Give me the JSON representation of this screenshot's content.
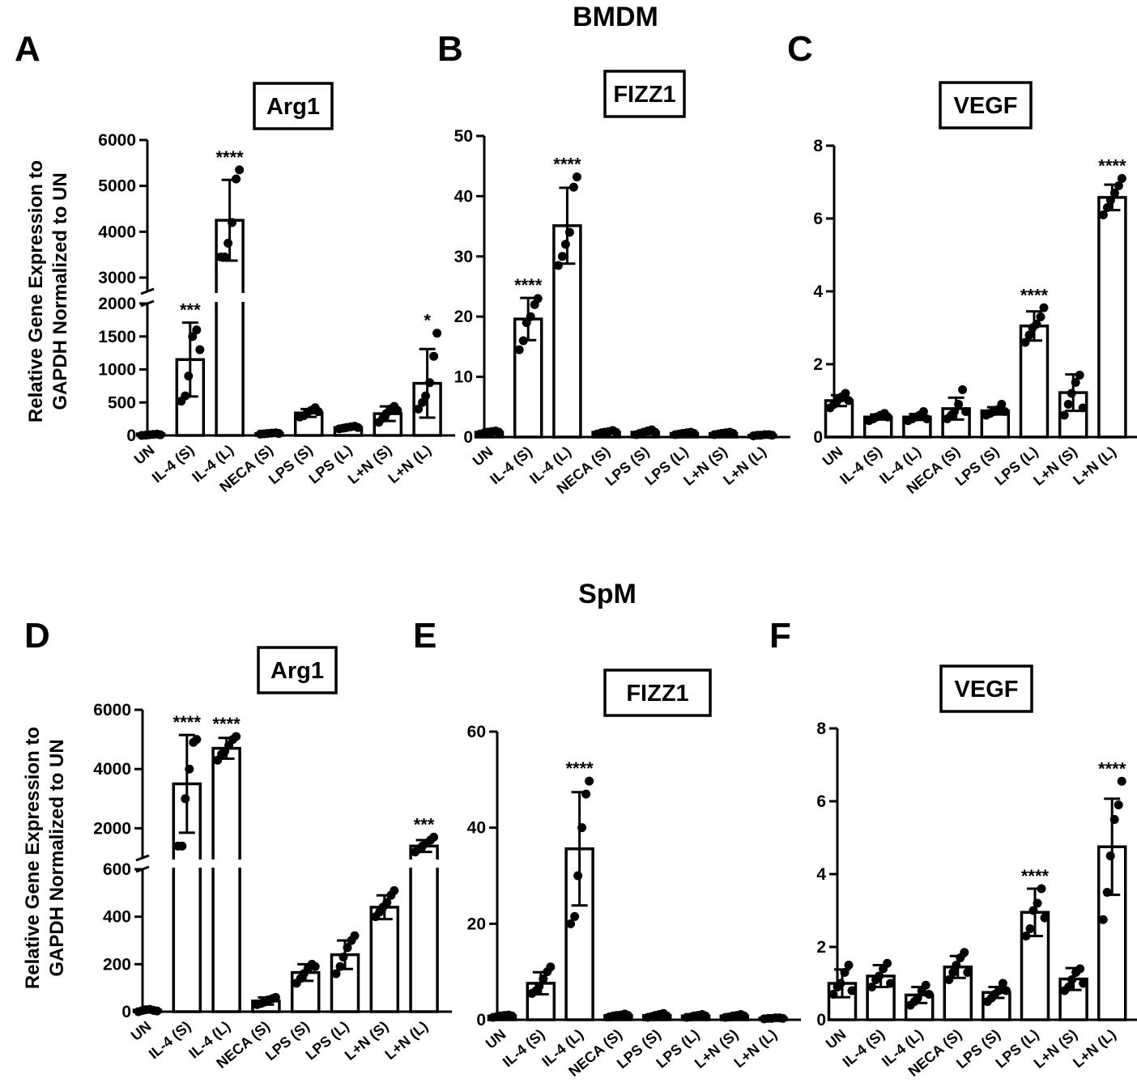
{
  "section_titles": [
    "BMDM",
    "SpM"
  ],
  "y_axis_label": [
    "Relative Gene Expression to",
    "GAPDH Normalized to UN"
  ],
  "chart_data": [
    {
      "panel": "A",
      "title": "Arg1",
      "type": "bar",
      "group": "BMDM",
      "categories": [
        "UN",
        "IL-4 (S)",
        "IL-4 (L)",
        "NECA (S)",
        "LPS (S)",
        "LPS (L)",
        "L+N (S)",
        "L+N (L)"
      ],
      "values": [
        10,
        1150,
        4250,
        30,
        340,
        120,
        330,
        790
      ],
      "sd": [
        5,
        560,
        880,
        10,
        60,
        20,
        110,
        520
      ],
      "points": [
        [
          0,
          5,
          10,
          15,
          20,
          10
        ],
        [
          520,
          600,
          900,
          1500,
          1600,
          1300
        ],
        [
          3450,
          3450,
          3750,
          4200,
          5150,
          5350
        ],
        [
          20,
          25,
          30,
          35,
          40,
          30
        ],
        [
          280,
          300,
          340,
          380,
          420,
          360
        ],
        [
          100,
          110,
          120,
          130,
          140,
          120
        ],
        [
          200,
          260,
          330,
          400,
          440,
          380
        ],
        [
          400,
          500,
          600,
          800,
          1200,
          1550
        ]
      ],
      "significance": [
        "",
        "***",
        "****",
        "",
        "",
        "",
        "",
        "*"
      ],
      "ylim": [
        0,
        6000
      ],
      "y_break": [
        2000,
        2700
      ],
      "yticks": [
        0,
        500,
        1000,
        1500,
        2000,
        3000,
        4000,
        5000,
        6000
      ]
    },
    {
      "panel": "B",
      "title": "FIZZ1",
      "type": "bar",
      "group": "BMDM",
      "categories": [
        "UN",
        "IL-4 (S)",
        "IL-4 (L)",
        "NECA (S)",
        "LPS (S)",
        "LPS (L)",
        "L+N (S)",
        "L+N (L)"
      ],
      "values": [
        0.8,
        19.6,
        35.1,
        0.8,
        0.8,
        0.6,
        0.6,
        0.3
      ],
      "sd": [
        0.2,
        3.5,
        6.3,
        0.2,
        0.3,
        0.1,
        0.1,
        0.1
      ],
      "points": [
        [
          0.5,
          0.7,
          0.8,
          0.9,
          1.0,
          0.8
        ],
        [
          14.5,
          16,
          19,
          20,
          22,
          23
        ],
        [
          28.5,
          30,
          32,
          34,
          41.5,
          43.2
        ],
        [
          0.5,
          0.7,
          0.8,
          0.9,
          1.1,
          0.8
        ],
        [
          0.4,
          0.6,
          0.8,
          1.0,
          1.2,
          0.8
        ],
        [
          0.4,
          0.5,
          0.6,
          0.7,
          0.8,
          0.6
        ],
        [
          0.4,
          0.5,
          0.6,
          0.7,
          0.8,
          0.6
        ],
        [
          0.2,
          0.3,
          0.3,
          0.4,
          0.4,
          0.3
        ]
      ],
      "significance": [
        "",
        "****",
        "****",
        "",
        "",
        "",
        "",
        ""
      ],
      "ylim": [
        0,
        50
      ],
      "yticks": [
        0,
        10,
        20,
        30,
        40,
        50
      ]
    },
    {
      "panel": "C",
      "title": "VEGF",
      "type": "bar",
      "group": "BMDM",
      "categories": [
        "UN",
        "IL-4 (S)",
        "IL-4 (L)",
        "NECA (S)",
        "LPS (S)",
        "LPS (L)",
        "L+N (S)",
        "L+N (L)"
      ],
      "values": [
        1.0,
        0.55,
        0.55,
        0.78,
        0.72,
        3.05,
        1.22,
        6.58
      ],
      "sd": [
        0.15,
        0.07,
        0.08,
        0.3,
        0.1,
        0.4,
        0.5,
        0.35
      ],
      "points": [
        [
          0.8,
          0.9,
          1.0,
          1.1,
          1.2,
          1.0
        ],
        [
          0.45,
          0.5,
          0.55,
          0.6,
          0.65,
          0.55
        ],
        [
          0.45,
          0.5,
          0.55,
          0.6,
          0.7,
          0.5
        ],
        [
          0.5,
          0.6,
          0.7,
          0.9,
          1.3,
          0.7
        ],
        [
          0.6,
          0.65,
          0.7,
          0.75,
          0.9,
          0.7
        ],
        [
          2.6,
          2.8,
          3.0,
          3.1,
          3.3,
          3.55
        ],
        [
          0.6,
          0.9,
          1.2,
          1.5,
          1.7,
          0.8
        ],
        [
          6.1,
          6.3,
          6.5,
          6.7,
          6.9,
          7.1
        ]
      ],
      "significance": [
        "",
        "",
        "",
        "",
        "",
        "****",
        "",
        "****"
      ],
      "ylim": [
        0,
        8
      ],
      "yticks": [
        0,
        2,
        4,
        6,
        8
      ]
    },
    {
      "panel": "D",
      "title": "Arg1",
      "type": "bar",
      "group": "SpM",
      "categories": [
        "UN",
        "IL-4 (S)",
        "IL-4 (L)",
        "NECA (S)",
        "LPS (S)",
        "LPS (L)",
        "L+N (S)",
        "L+N (L)"
      ],
      "values": [
        5,
        3500,
        4700,
        45,
        165,
        240,
        440,
        1400
      ],
      "sd": [
        3,
        1650,
        350,
        15,
        35,
        60,
        50,
        200
      ],
      "points": [
        [
          0,
          5,
          8,
          10,
          5,
          3
        ],
        [
          1400,
          1400,
          3000,
          4000,
          4900,
          5000
        ],
        [
          4300,
          4500,
          4600,
          4800,
          5000,
          5100
        ],
        [
          30,
          35,
          40,
          50,
          55,
          60
        ],
        [
          120,
          140,
          160,
          180,
          200,
          190
        ],
        [
          160,
          190,
          230,
          270,
          300,
          320
        ],
        [
          400,
          420,
          440,
          460,
          490,
          510
        ],
        [
          1200,
          1300,
          1400,
          1500,
          1600,
          1700
        ]
      ],
      "significance": [
        "",
        "****",
        "****",
        "",
        "",
        "",
        "",
        "***"
      ],
      "ylim": [
        0,
        6000
      ],
      "y_break": [
        600,
        1000
      ],
      "yticks": [
        0,
        200,
        400,
        600,
        2000,
        4000,
        6000
      ]
    },
    {
      "panel": "E",
      "title": "FIZZ1",
      "type": "bar",
      "group": "SpM",
      "categories": [
        "UN",
        "IL-4 (S)",
        "IL-4 (L)",
        "NECA (S)",
        "LPS (S)",
        "LPS (L)",
        "L+N (S)",
        "L+N (L)"
      ],
      "values": [
        0.8,
        7.6,
        35.6,
        0.9,
        0.9,
        0.8,
        0.8,
        0.3
      ],
      "sd": [
        0.2,
        2.3,
        11.8,
        0.2,
        0.3,
        0.2,
        0.2,
        0.1
      ],
      "points": [
        [
          0.5,
          0.7,
          0.8,
          0.9,
          1.0,
          0.8
        ],
        [
          5.5,
          6,
          7,
          8.5,
          10,
          11
        ],
        [
          20,
          21.5,
          30,
          40,
          47,
          49.7
        ],
        [
          0.6,
          0.8,
          0.9,
          1.0,
          1.2,
          0.9
        ],
        [
          0.5,
          0.7,
          0.9,
          1.1,
          1.3,
          0.8
        ],
        [
          0.5,
          0.6,
          0.8,
          0.9,
          1.1,
          0.8
        ],
        [
          0.5,
          0.6,
          0.8,
          0.9,
          1.1,
          0.8
        ],
        [
          0.2,
          0.3,
          0.3,
          0.4,
          0.4,
          0.3
        ]
      ],
      "significance": [
        "",
        "",
        "****",
        "",
        "",
        "",
        "",
        ""
      ],
      "ylim": [
        0,
        60
      ],
      "yticks": [
        0,
        20,
        40,
        60
      ]
    },
    {
      "panel": "F",
      "title": "VEGF",
      "type": "bar",
      "group": "SpM",
      "categories": [
        "UN",
        "IL-4 (S)",
        "IL-4 (L)",
        "NECA (S)",
        "LPS (S)",
        "LPS (L)",
        "L+N (S)",
        "L+N (L)"
      ],
      "values": [
        1.0,
        1.2,
        0.68,
        1.45,
        0.75,
        2.95,
        1.12,
        4.75
      ],
      "sd": [
        0.38,
        0.3,
        0.22,
        0.3,
        0.15,
        0.65,
        0.3,
        1.32
      ],
      "points": [
        [
          0.7,
          0.9,
          1.0,
          1.3,
          1.5,
          0.8
        ],
        [
          0.9,
          1.1,
          1.2,
          1.4,
          1.55,
          1.0
        ],
        [
          0.4,
          0.5,
          0.6,
          0.8,
          0.95,
          0.7
        ],
        [
          1.1,
          1.3,
          1.5,
          1.7,
          1.85,
          1.3
        ],
        [
          0.5,
          0.6,
          0.7,
          0.8,
          1.0,
          0.8
        ],
        [
          2.3,
          2.5,
          3.0,
          3.2,
          3.6,
          2.8
        ],
        [
          0.8,
          0.9,
          1.1,
          1.3,
          1.4,
          1.0
        ],
        [
          2.75,
          3.5,
          4.5,
          5.5,
          5.9,
          6.55
        ]
      ],
      "significance": [
        "",
        "",
        "",
        "",
        "",
        "****",
        "",
        "****"
      ],
      "ylim": [
        0,
        8
      ],
      "yticks": [
        0,
        2,
        4,
        6,
        8
      ]
    }
  ]
}
